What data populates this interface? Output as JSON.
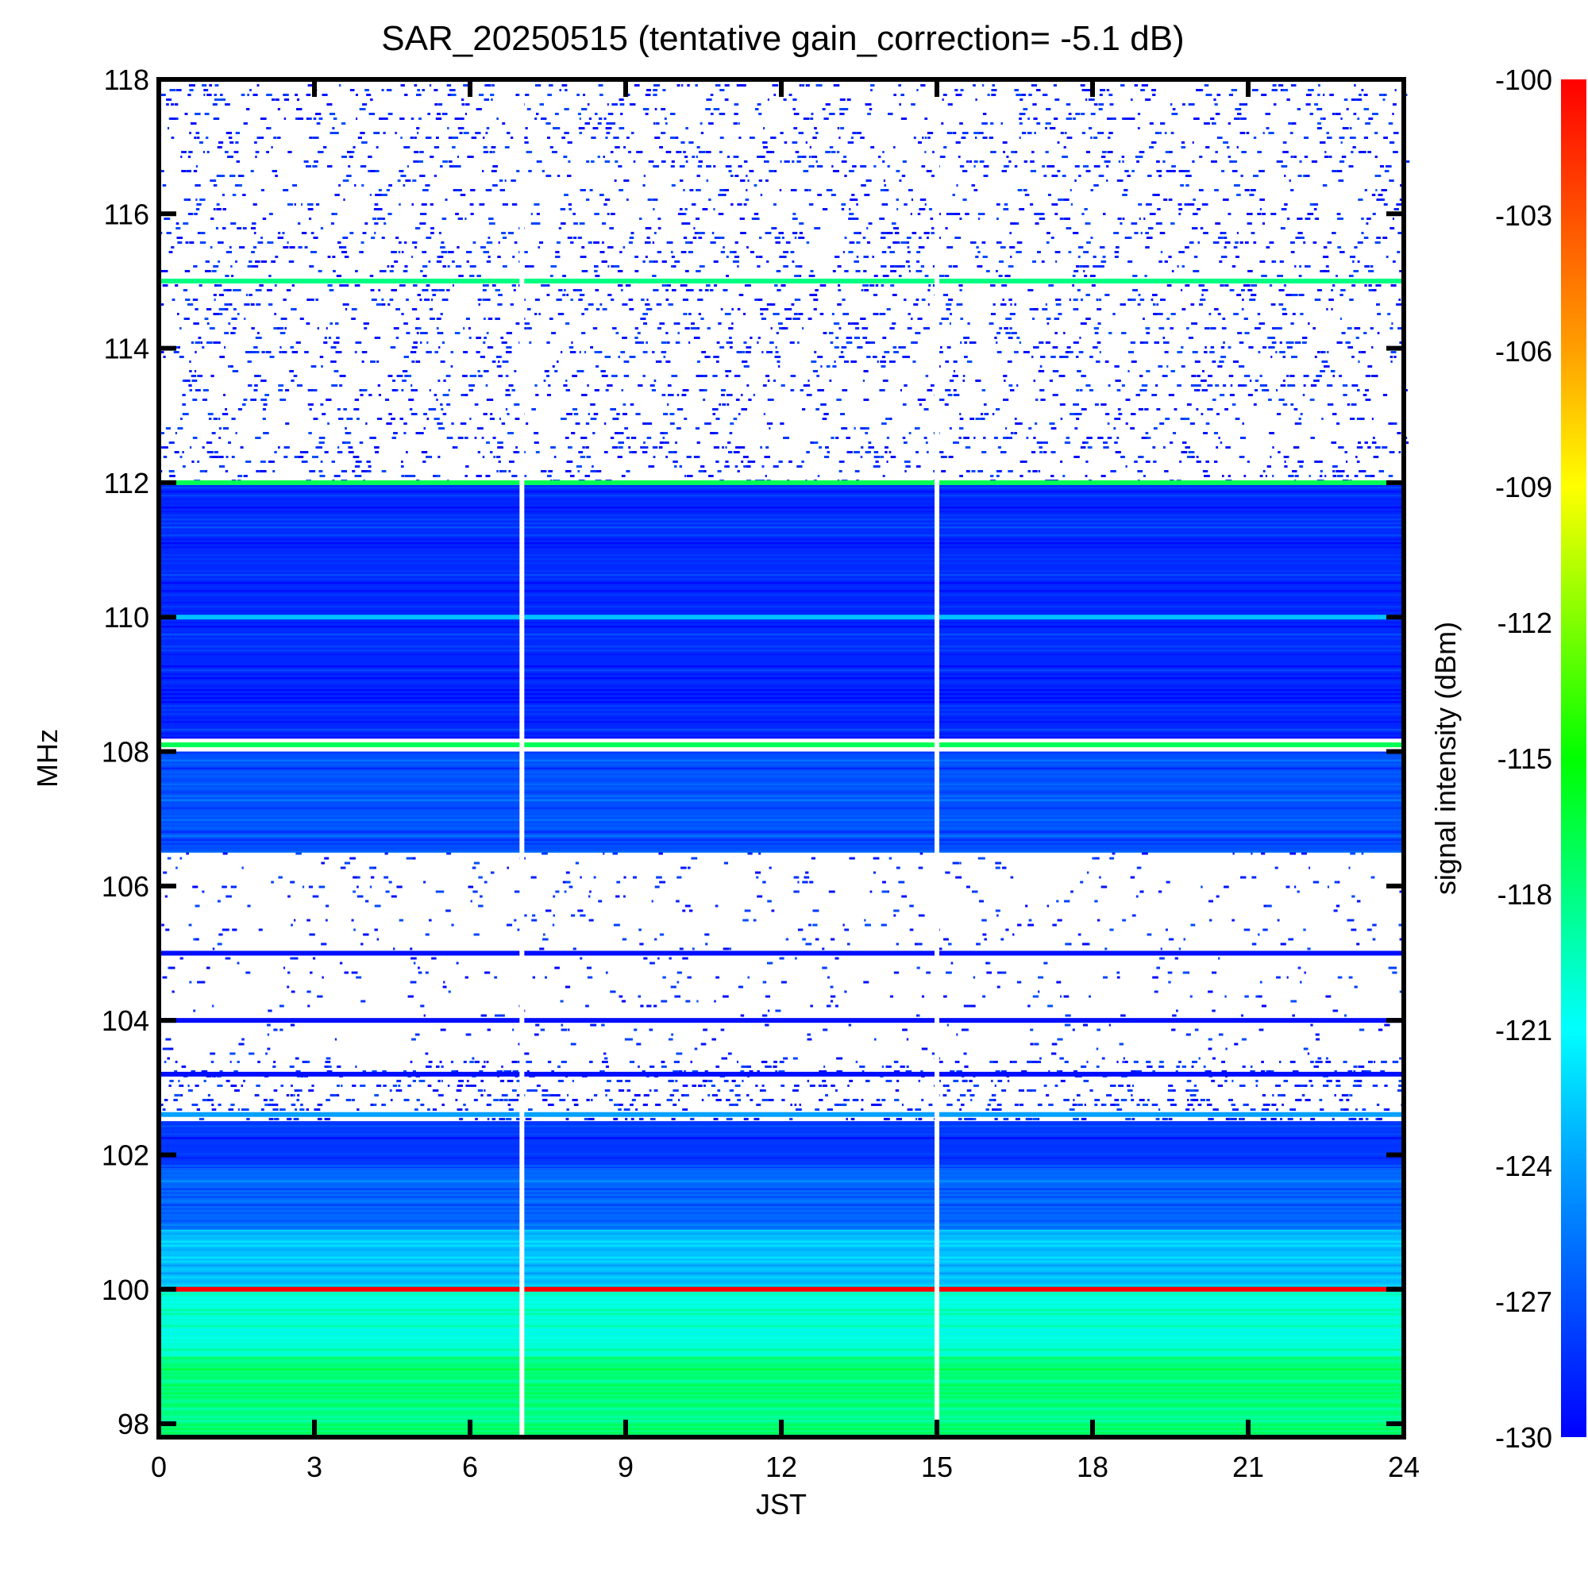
{
  "chart_data": {
    "type": "heatmap",
    "title": "SAR_20250515 (tentative gain_correction= -5.1 dB)",
    "xlabel": "JST",
    "ylabel": "MHz",
    "colorbar_label": "signal intensity (dBm)",
    "xlim": [
      0,
      24
    ],
    "ylim": [
      97.8,
      118
    ],
    "x_ticks": [
      "0",
      "3",
      "6",
      "9",
      "12",
      "15",
      "18",
      "21",
      "24"
    ],
    "y_ticks": [
      "98",
      "100",
      "102",
      "104",
      "106",
      "108",
      "110",
      "112",
      "114",
      "116",
      "118"
    ],
    "color_range": [
      -130,
      -100
    ],
    "colorbar_ticks": [
      "-100",
      "-103",
      "-106",
      "-109",
      "-112",
      "-115",
      "-118",
      "-121",
      "-124",
      "-127",
      "-130"
    ],
    "colormap": [
      "#0000ff",
      "#0050ff",
      "#00a0ff",
      "#00ffff",
      "#00ff80",
      "#00ff00",
      "#80ff00",
      "#ffff00",
      "#ffa000",
      "#ff5000",
      "#ff0000"
    ],
    "data_gaps_jst": [
      7.0,
      15.0
    ],
    "frequency_bands": [
      {
        "from": 97.8,
        "to": 99.0,
        "level_dbm": -118
      },
      {
        "from": 99.0,
        "to": 100.0,
        "level_dbm": -120
      },
      {
        "from": 100.0,
        "to": 100.9,
        "level_dbm": -123
      },
      {
        "from": 100.9,
        "to": 101.8,
        "level_dbm": -126
      },
      {
        "from": 101.8,
        "to": 102.5,
        "level_dbm": -128
      },
      {
        "from": 106.5,
        "to": 108.0,
        "level_dbm": -127
      },
      {
        "from": 108.2,
        "to": 112.0,
        "level_dbm": -128.5
      }
    ],
    "strong_lines": [
      {
        "mhz": 100.0,
        "level_dbm": -100
      },
      {
        "mhz": 108.1,
        "level_dbm": -117
      },
      {
        "mhz": 112.0,
        "level_dbm": -117
      },
      {
        "mhz": 115.0,
        "level_dbm": -118
      },
      {
        "mhz": 110.0,
        "level_dbm": -123
      },
      {
        "mhz": 102.6,
        "level_dbm": -124
      }
    ],
    "sparse_lines_mhz": [
      103.2,
      104.0,
      105.0
    ]
  }
}
